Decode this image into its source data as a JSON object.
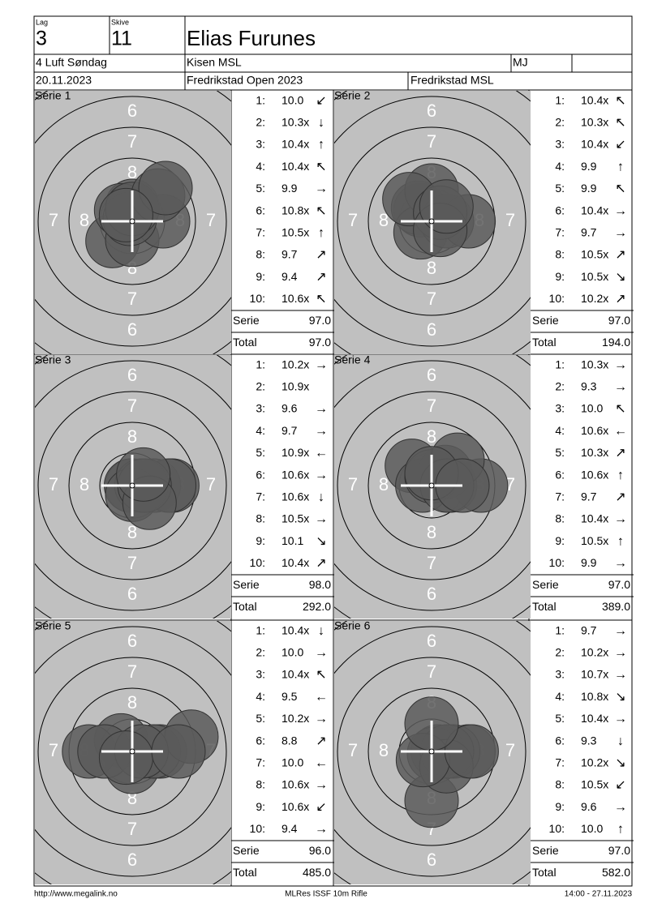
{
  "header": {
    "lag_label": "Lag",
    "lag": "3",
    "skive_label": "Skive",
    "skive": "11",
    "name": "Elias Furunes",
    "event": "4 Luft Søndag",
    "club": "Kisen MSL",
    "class": "MJ",
    "date": "20.11.2023",
    "competition": "Fredrikstad Open 2023",
    "organizer": "Fredrikstad MSL"
  },
  "labels": {
    "serie": "Serie",
    "total": "Total"
  },
  "ring_labels": [
    "6",
    "7",
    "8"
  ],
  "series": [
    {
      "title": "Serie 1",
      "serie": "97.0",
      "total": "97.0",
      "shots": [
        {
          "no": "1:",
          "score": "10.0",
          "dir": "↙",
          "x": -1.6,
          "y": -1.6
        },
        {
          "no": "2:",
          "score": "10.3x",
          "dir": "↓",
          "x": 0,
          "y": -1.5
        },
        {
          "no": "3:",
          "score": "10.4x",
          "dir": "↑",
          "x": 0,
          "y": 1.25
        },
        {
          "no": "4:",
          "score": "10.4x",
          "dir": "↖",
          "x": -0.9,
          "y": 0.9
        },
        {
          "no": "5:",
          "score": "9.9",
          "dir": "→",
          "x": 2.5,
          "y": 0
        },
        {
          "no": "6:",
          "score": "10.8x",
          "dir": "↖",
          "x": -0.2,
          "y": 0.2
        },
        {
          "no": "7:",
          "score": "10.5x",
          "dir": "↑",
          "x": 0,
          "y": 1
        },
        {
          "no": "8:",
          "score": "9.7",
          "dir": "↗",
          "x": 2.1,
          "y": 2.1
        },
        {
          "no": "9:",
          "score": "9.4",
          "dir": "↗",
          "x": 2.7,
          "y": 2.7
        },
        {
          "no": "10:",
          "score": "10.6x",
          "dir": "↖",
          "x": -0.5,
          "y": 0.5
        }
      ]
    },
    {
      "title": "Serie 2",
      "serie": "97.0",
      "total": "194.0",
      "shots": [
        {
          "no": "1:",
          "score": "10.4x",
          "dir": "↖",
          "x": -0.9,
          "y": 0.9
        },
        {
          "no": "2:",
          "score": "10.3x",
          "dir": "↖",
          "x": -1.1,
          "y": 1.1
        },
        {
          "no": "3:",
          "score": "10.4x",
          "dir": "↙",
          "x": -0.9,
          "y": -0.9
        },
        {
          "no": "4:",
          "score": "9.9",
          "dir": "↑",
          "x": 0,
          "y": 2.5
        },
        {
          "no": "5:",
          "score": "9.9",
          "dir": "↖",
          "x": -1.8,
          "y": 1.8
        },
        {
          "no": "6:",
          "score": "10.4x",
          "dir": "→",
          "x": 1.25,
          "y": 0
        },
        {
          "no": "7:",
          "score": "9.7",
          "dir": "→",
          "x": 3,
          "y": 0
        },
        {
          "no": "8:",
          "score": "10.5x",
          "dir": "↗",
          "x": 0.7,
          "y": 0.7
        },
        {
          "no": "9:",
          "score": "10.5x",
          "dir": "↘",
          "x": 0.7,
          "y": -0.7
        },
        {
          "no": "10:",
          "score": "10.2x",
          "dir": "↗",
          "x": 1.2,
          "y": 1.2
        }
      ]
    },
    {
      "title": "Serie 3",
      "serie": "98.0",
      "total": "292.0",
      "shots": [
        {
          "no": "1:",
          "score": "10.2x",
          "dir": "→",
          "x": 1.75,
          "y": 0
        },
        {
          "no": "2:",
          "score": "10.9x",
          "x": 0,
          "y": 0
        },
        {
          "no": "3:",
          "score": "9.6",
          "dir": "→",
          "x": 3.25,
          "y": 0
        },
        {
          "no": "4:",
          "score": "9.7",
          "dir": "→",
          "x": 3,
          "y": 0
        },
        {
          "no": "5:",
          "score": "10.9x",
          "dir": "←",
          "x": -0.1,
          "y": 0
        },
        {
          "no": "6:",
          "score": "10.6x",
          "dir": "→",
          "x": 0.75,
          "y": 0
        },
        {
          "no": "7:",
          "score": "10.6x",
          "dir": "↓",
          "x": 0,
          "y": -0.75
        },
        {
          "no": "8:",
          "score": "10.5x",
          "dir": "→",
          "x": 1,
          "y": 0
        },
        {
          "no": "9:",
          "score": "10.1",
          "dir": "↘",
          "x": 1.4,
          "y": -1.4
        },
        {
          "no": "10:",
          "score": "10.4x",
          "dir": "↗",
          "x": 0.9,
          "y": 0.9
        }
      ]
    },
    {
      "title": "Serie 4",
      "serie": "97.0",
      "total": "389.0",
      "shots": [
        {
          "no": "1:",
          "score": "10.3x",
          "dir": "→",
          "x": 1.5,
          "y": 0
        },
        {
          "no": "2:",
          "score": "9.3",
          "dir": "→",
          "x": 4,
          "y": 0
        },
        {
          "no": "3:",
          "score": "10.0",
          "dir": "↖",
          "x": -1.6,
          "y": 1.6
        },
        {
          "no": "4:",
          "score": "10.6x",
          "dir": "←",
          "x": -0.75,
          "y": 0
        },
        {
          "no": "5:",
          "score": "10.3x",
          "dir": "↗",
          "x": 1.1,
          "y": 1.1
        },
        {
          "no": "6:",
          "score": "10.6x",
          "dir": "↑",
          "x": 0,
          "y": 0.75
        },
        {
          "no": "7:",
          "score": "9.7",
          "dir": "↗",
          "x": 2.1,
          "y": 2.1
        },
        {
          "no": "8:",
          "score": "10.4x",
          "dir": "→",
          "x": 1.25,
          "y": 0
        },
        {
          "no": "9:",
          "score": "10.5x",
          "dir": "↑",
          "x": 0,
          "y": 1
        },
        {
          "no": "10:",
          "score": "9.9",
          "dir": "→",
          "x": 2.5,
          "y": 0
        }
      ]
    },
    {
      "title": "Serie 5",
      "serie": "96.0",
      "total": "485.0",
      "shots": [
        {
          "no": "1:",
          "score": "10.4x",
          "dir": "↓",
          "x": 0,
          "y": -1.25
        },
        {
          "no": "2:",
          "score": "10.0",
          "dir": "→",
          "x": 2.25,
          "y": 0
        },
        {
          "no": "3:",
          "score": "10.4x",
          "dir": "↖",
          "x": -0.9,
          "y": 0.9
        },
        {
          "no": "4:",
          "score": "9.5",
          "dir": "←",
          "x": -3.5,
          "y": 0
        },
        {
          "no": "5:",
          "score": "10.2x",
          "dir": "→",
          "x": 1.75,
          "y": 0
        },
        {
          "no": "6:",
          "score": "8.8",
          "dir": "↗",
          "x": 4.8,
          "y": 1.2
        },
        {
          "no": "7:",
          "score": "10.0",
          "dir": "←",
          "x": -2.25,
          "y": 0
        },
        {
          "no": "8:",
          "score": "10.6x",
          "dir": "→",
          "x": 0.75,
          "y": 0
        },
        {
          "no": "9:",
          "score": "10.6x",
          "dir": "↙",
          "x": -0.5,
          "y": -0.5
        },
        {
          "no": "10:",
          "score": "9.4",
          "dir": "→",
          "x": 3.75,
          "y": 0
        }
      ]
    },
    {
      "title": "Serie 6",
      "serie": "97.0",
      "total": "582.0",
      "shots": [
        {
          "no": "1:",
          "score": "9.7",
          "dir": "→",
          "x": 3,
          "y": 0
        },
        {
          "no": "2:",
          "score": "10.2x",
          "dir": "→",
          "x": 1.75,
          "y": 0
        },
        {
          "no": "3:",
          "score": "10.7x",
          "dir": "→",
          "x": 0.5,
          "y": 0
        },
        {
          "no": "4:",
          "score": "10.8x",
          "dir": "↘",
          "x": 0.2,
          "y": -0.2
        },
        {
          "no": "5:",
          "score": "10.4x",
          "dir": "→",
          "x": 1.25,
          "y": 0
        },
        {
          "no": "6:",
          "score": "9.3",
          "dir": "↓",
          "x": 0,
          "y": -4
        },
        {
          "no": "7:",
          "score": "10.2x",
          "dir": "↘",
          "x": 1.2,
          "y": -1.2
        },
        {
          "no": "8:",
          "score": "10.5x",
          "dir": "↙",
          "x": -0.7,
          "y": -0.7
        },
        {
          "no": "9:",
          "score": "9.6",
          "dir": "→",
          "x": 3.25,
          "y": 0
        },
        {
          "no": "10:",
          "score": "10.0",
          "dir": "↑",
          "x": 0,
          "y": 2.25
        }
      ]
    }
  ],
  "footer": {
    "url": "http://www.megalink.no",
    "program": "MLRes ISSF 10m Rifle",
    "timestamp": "14:00 - 27.11.2023"
  }
}
